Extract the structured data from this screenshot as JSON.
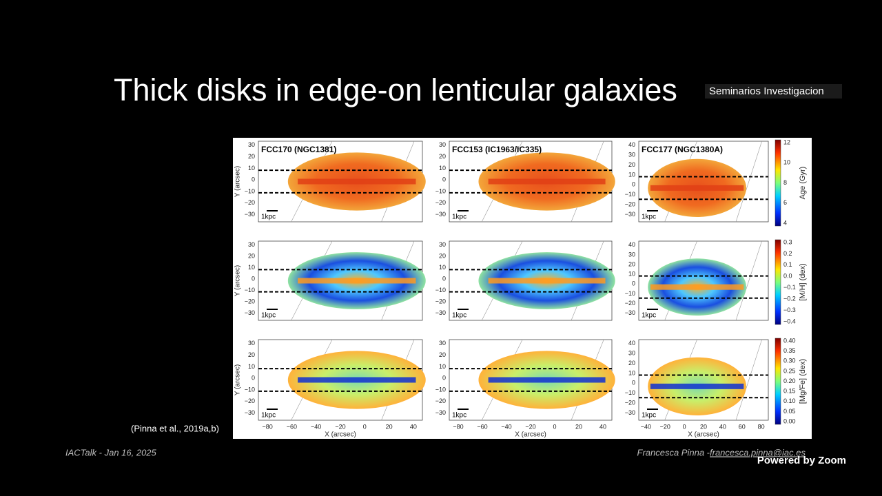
{
  "slide": {
    "title": "Thick disks in edge-on lenticular galaxies",
    "citation": "(Pinna et al., 2019a,b)",
    "footer_left": "IACTalk - Jan 16, 2025",
    "footer_author": "Francesca Pinna - ",
    "footer_email": "francesca.pinna@iac.es"
  },
  "overlay": {
    "room_name": "Seminarios Investigacion",
    "powered_by": "Powered by Zoom"
  },
  "figure": {
    "panel_titles": [
      "FCC170 (NGC1381)",
      "FCC153 (IC1963/IC335)",
      "FCC177 (NGC1380A)"
    ],
    "y_label": "Y (arcsec)",
    "x_label": "X (arcsec)",
    "scale_label": "1kpc",
    "y_ticks_narrow": [
      "30",
      "20",
      "10",
      "0",
      "−10",
      "−20",
      "−30"
    ],
    "y_ticks_wide": [
      "40",
      "30",
      "20",
      "10",
      "0",
      "−10",
      "−20",
      "−30"
    ],
    "x_ticks_left": [
      "−80",
      "−60",
      "−40",
      "−20",
      "0",
      "20",
      "40"
    ],
    "x_ticks_right": [
      "−40",
      "−20",
      "0",
      "20",
      "40",
      "60",
      "80"
    ],
    "colorbars": [
      {
        "label": "Age (Gyr)",
        "ticks": [
          "12",
          "10",
          "8",
          "6",
          "4"
        ]
      },
      {
        "label": "[M/H] (dex)",
        "ticks": [
          "0.3",
          "0.2",
          "0.1",
          "0.0",
          "−0.1",
          "−0.2",
          "−0.3",
          "−0.4"
        ]
      },
      {
        "label": "[Mg/Fe] (dex)",
        "ticks": [
          "0.40",
          "0.35",
          "0.30",
          "0.25",
          "0.20",
          "0.15",
          "0.10",
          "0.05",
          "0.00"
        ]
      }
    ]
  }
}
